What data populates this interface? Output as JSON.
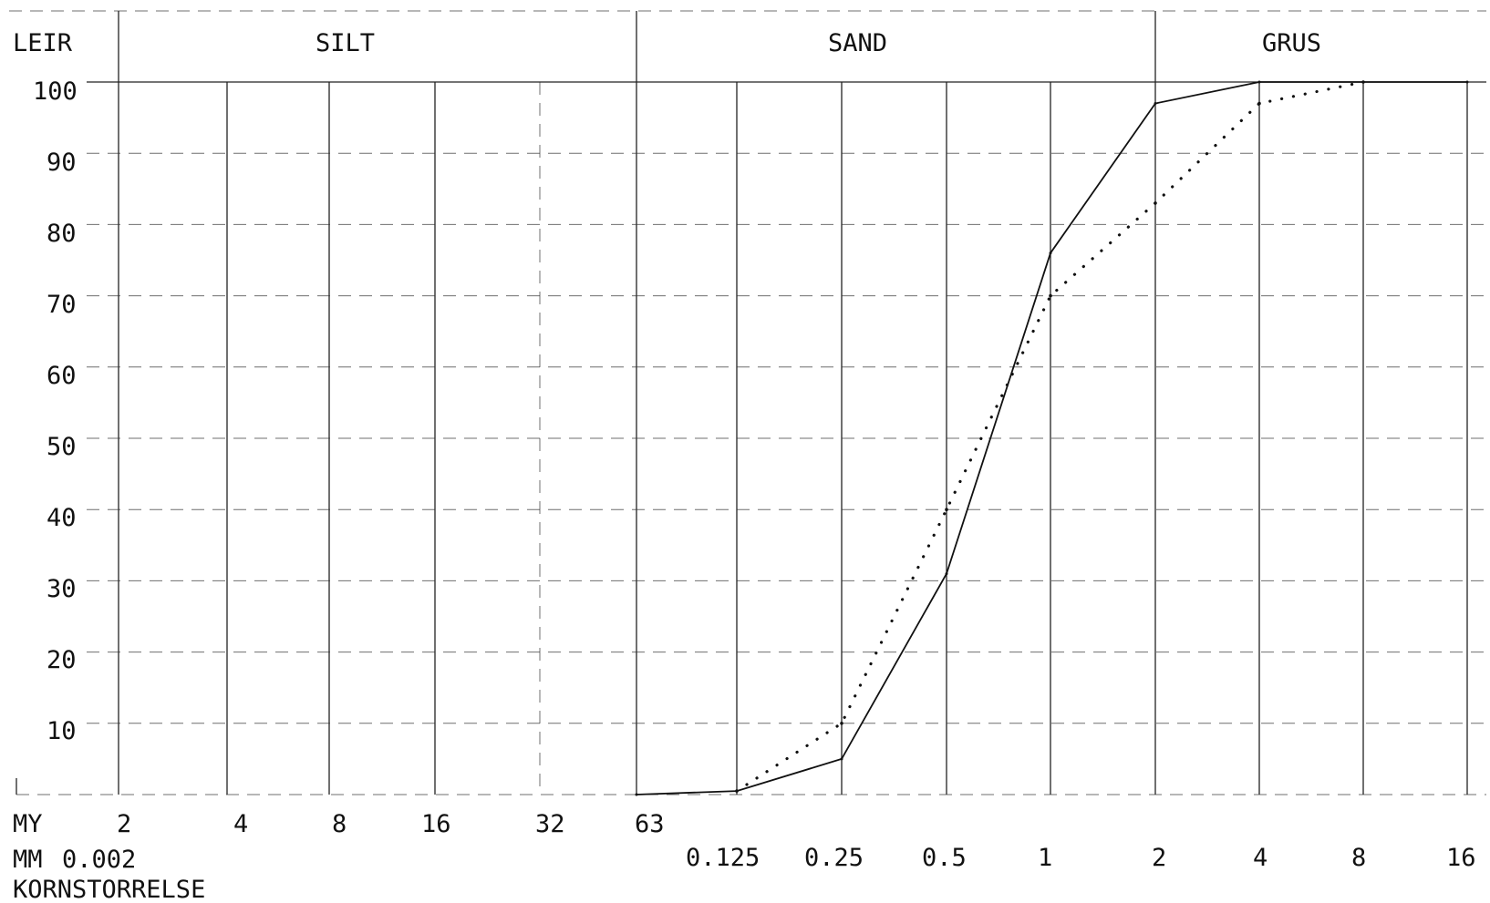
{
  "chart_data": {
    "type": "line",
    "zones": [
      "LEIR",
      "SILT",
      "SAND",
      "GRUS"
    ],
    "x_unit_labels": {
      "my": "MY",
      "mm": "MM",
      "axis_title": "KORNSTORRELSE"
    },
    "x_ticks_my": [
      "2",
      "4",
      "8",
      "16",
      "32",
      "63"
    ],
    "x_ticks_mm": [
      "0.002",
      "0.125",
      "0.25",
      "0.5",
      "1",
      "2",
      "4",
      "8",
      "16"
    ],
    "y_ticks": [
      "10",
      "20",
      "30",
      "40",
      "50",
      "60",
      "70",
      "80",
      "90",
      "100"
    ],
    "ylim": [
      0,
      100
    ],
    "xlim_mm": [
      0.002,
      16
    ],
    "x_scale": "log2",
    "grid": true,
    "series": [
      {
        "style": "solid",
        "x": [
          0.063,
          0.125,
          0.25,
          0.5,
          1,
          2,
          4,
          8,
          16
        ],
        "y": [
          0,
          0.5,
          5,
          31,
          76,
          97,
          100,
          100,
          100
        ]
      },
      {
        "style": "dotted",
        "x": [
          0.125,
          0.25,
          0.5,
          1,
          2,
          4,
          8
        ],
        "y": [
          0.5,
          10,
          40,
          70,
          83,
          97,
          100
        ]
      }
    ],
    "colors": {
      "ink": "#111111",
      "grid": "#333333",
      "background": "#ffffff"
    }
  }
}
